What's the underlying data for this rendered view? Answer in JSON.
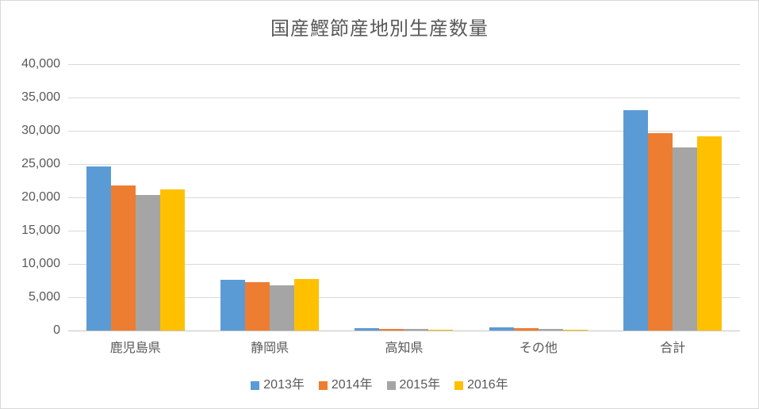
{
  "chart_data": {
    "type": "bar",
    "title": "国産鰹節産地別生産数量",
    "categories": [
      "鹿児島県",
      "静岡県",
      "高知県",
      "その他",
      "合計"
    ],
    "series": [
      {
        "name": "2013年",
        "color": "#5B9BD5",
        "values": [
          24600,
          7600,
          400,
          500,
          33100
        ]
      },
      {
        "name": "2014年",
        "color": "#ED7D31",
        "values": [
          21750,
          7250,
          250,
          350,
          29600
        ]
      },
      {
        "name": "2015年",
        "color": "#A5A5A5",
        "values": [
          20300,
          6750,
          200,
          250,
          27500
        ]
      },
      {
        "name": "2016年",
        "color": "#FFC000",
        "values": [
          21250,
          7700,
          100,
          150,
          29200
        ]
      }
    ],
    "y_axis": {
      "min": 0,
      "max": 40000,
      "step": 5000,
      "tick_labels": [
        "40,000",
        "35,000",
        "30,000",
        "25,000",
        "20,000",
        "15,000",
        "10,000",
        "5,000",
        "0"
      ]
    },
    "grid": true,
    "legend_position": "bottom",
    "colors": {
      "text": "#595959",
      "gridline": "#D9D9D9",
      "axis_line": "#C6C6C6",
      "frame_border": "#D9D9D9",
      "background": "#FFFFFF"
    }
  }
}
